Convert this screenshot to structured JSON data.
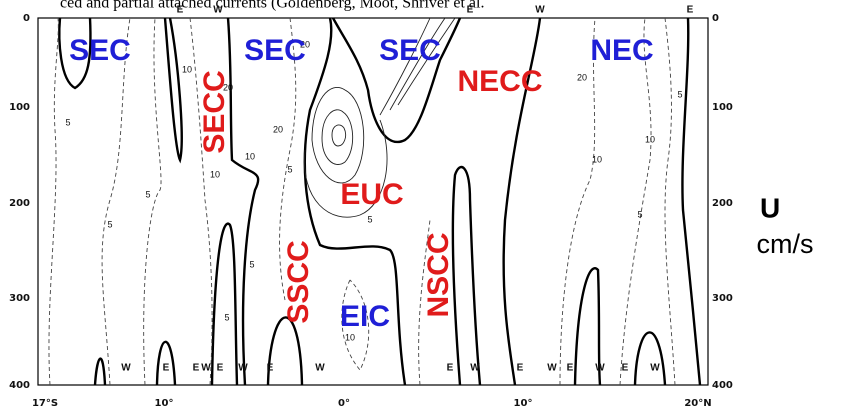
{
  "caption": "ced and partial attached currents (Goldenberg, Moot, Shriver et al.",
  "axes": {
    "depth_ticks": [
      "0",
      "100",
      "200",
      "300",
      "400"
    ],
    "lat_ticks": [
      "17°S",
      "10°",
      "0°",
      "10°",
      "20°N"
    ]
  },
  "currents": {
    "sec_1": "SEC",
    "sec_2": "SEC",
    "sec_3": "SEC",
    "nec": "NEC",
    "secc": "SECC",
    "necc": "NECC",
    "euc": "EUC",
    "sscc": "SSCC",
    "nscc": "NSCC",
    "eic": "EIC"
  },
  "top_flow": [
    "E",
    "W",
    "E",
    "W",
    "E"
  ],
  "bottom_flow": [
    "W",
    "E",
    "E",
    "W",
    "E",
    "W",
    "E",
    "W",
    "E",
    "W",
    "E",
    "W",
    "E",
    "W",
    "E",
    "W"
  ],
  "contour_labels": [
    "5",
    "5",
    "5",
    "20",
    "10",
    "10",
    "5",
    "20",
    "20",
    "5",
    "10",
    "5",
    "5",
    "20",
    "10",
    "10",
    "5",
    "5",
    "10"
  ],
  "unit": {
    "symbol": "U",
    "text": "cm/s"
  }
}
